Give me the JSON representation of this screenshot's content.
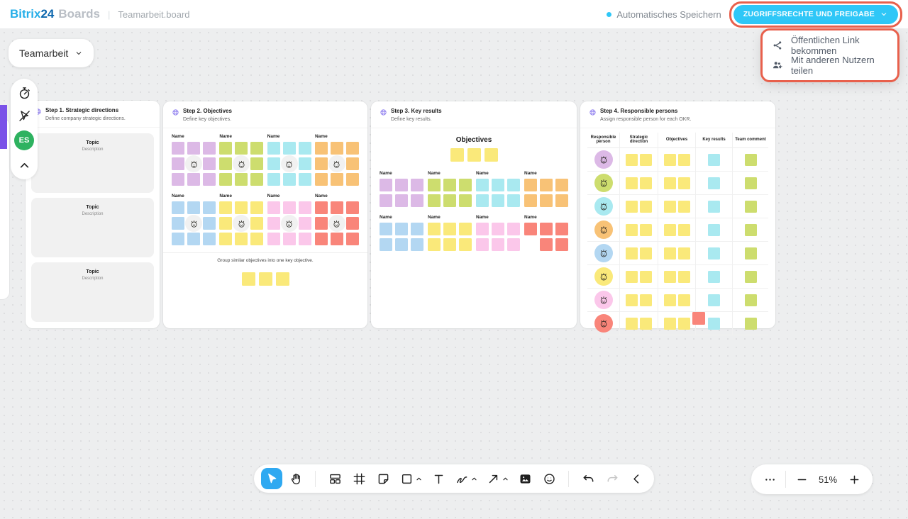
{
  "palette": {
    "accent": "#2FC7F7",
    "annotation": "#E8604C",
    "logo_light": "#25AEE8",
    "logo_dark": "#0B66AD",
    "avatar_green": "#2EB260",
    "frame_purple": "#7A52E8",
    "active_tool_blue": "#2FA9F1",
    "lavender": "#DCB9E6",
    "green": "#CDDD6E",
    "cyan": "#A9E9F0",
    "orange": "#F8C276",
    "blue": "#B3D7F2",
    "yellow": "#FAE97A",
    "pink": "#FBC7EA",
    "red": "#F9857A",
    "avatar_bg_gray": "#F1F1F1"
  },
  "header": {
    "logo_part1": "Bitrix",
    "logo_part2": "24",
    "logo_product": "Boards",
    "breadcrumb_separator": "|",
    "document_title": "Teamarbeit.board",
    "autosave_label": "Automatisches Speichern",
    "share_button_label": "ZUGRIFFSRECHTE UND FREIGABE"
  },
  "share_menu": {
    "items": [
      {
        "name": "get-public-link-item",
        "icon": "share-icon",
        "label": "Öffentlichen Link bekommen"
      },
      {
        "name": "share-with-users-item",
        "icon": "user-plus-icon",
        "label": "Mit anderen Nutzern teilen"
      }
    ]
  },
  "board_selector": {
    "label": "Teamarbeit"
  },
  "left_toolbar": {
    "items": [
      {
        "name": "timer-button",
        "icon": "timer-icon"
      },
      {
        "name": "hide-cursors-button",
        "icon": "cursor-off-icon"
      },
      {
        "name": "user-avatar",
        "type": "avatar",
        "initials": "ES"
      },
      {
        "name": "collapse-panel-button",
        "icon": "chevron-up-icon"
      }
    ]
  },
  "frames": {
    "step1": {
      "title": "Step 1. Strategic directions",
      "subtitle": "Define company strategic directions.",
      "cards": [
        {
          "title": "Topic",
          "description": "Description"
        },
        {
          "title": "Topic",
          "description": "Description"
        },
        {
          "title": "Topic",
          "description": "Description"
        }
      ]
    },
    "step2": {
      "title": "Step 2. Objectives",
      "subtitle": "Define key objectives.",
      "group_label": "Name",
      "group_colors": [
        "lavender",
        "green",
        "cyan",
        "orange",
        "blue",
        "yellow",
        "pink",
        "red"
      ],
      "hint": "Group similar objectives into one key objective.",
      "hint_stickies": {
        "count": 3,
        "color": "yellow"
      }
    },
    "step3": {
      "title": "Step 3. Key results",
      "subtitle": "Define key results.",
      "heading": "Objectives",
      "heading_stickies": {
        "count": 3,
        "color": "yellow"
      },
      "group_label": "Name",
      "groups": [
        {
          "color": "lavender",
          "cells": [
            1,
            1,
            1,
            1,
            1,
            1
          ]
        },
        {
          "color": "green",
          "cells": [
            1,
            1,
            1,
            1,
            1,
            1
          ]
        },
        {
          "color": "cyan",
          "cells": [
            1,
            1,
            1,
            1,
            1,
            1
          ]
        },
        {
          "color": "orange",
          "cells": [
            1,
            1,
            1,
            1,
            1,
            1
          ]
        },
        {
          "color": "blue",
          "cells": [
            1,
            1,
            1,
            1,
            1,
            1
          ]
        },
        {
          "color": "yellow",
          "cells": [
            1,
            1,
            1,
            1,
            1,
            1
          ]
        },
        {
          "color": "pink",
          "cells": [
            1,
            1,
            1,
            1,
            1,
            1
          ]
        },
        {
          "color": "red",
          "cells": [
            1,
            1,
            1,
            0,
            1,
            1
          ]
        }
      ]
    },
    "step4": {
      "title": "Step 4. Responsible persons",
      "subtitle": "Assign responsible person for each OKR.",
      "columns": [
        "Responsible person",
        "Strategic direction",
        "Objectives",
        "Key results",
        "Team comment"
      ],
      "rows": [
        {
          "avatar_color": "lavender"
        },
        {
          "avatar_color": "green"
        },
        {
          "avatar_color": "cyan"
        },
        {
          "avatar_color": "orange"
        },
        {
          "avatar_color": "blue"
        },
        {
          "avatar_color": "yellow"
        },
        {
          "avatar_color": "pink"
        },
        {
          "avatar_color": "red"
        }
      ],
      "row_stickies": {
        "strategic_direction": {
          "count": 2,
          "color": "yellow"
        },
        "objectives": {
          "count": 2,
          "color": "yellow"
        },
        "key_results": {
          "count": 1,
          "color": "cyan"
        },
        "team_comment": {
          "count": 1,
          "color": "green"
        }
      },
      "overlay_sticky": {
        "color": "red",
        "row": 8,
        "column": "key_results"
      }
    }
  },
  "bottom_toolbar": {
    "tools": [
      {
        "name": "select-tool",
        "icon": "cursor-icon",
        "active": true
      },
      {
        "name": "pan-tool",
        "icon": "hand-icon"
      },
      {
        "divider": true
      },
      {
        "name": "template-tool",
        "icon": "layout-icon"
      },
      {
        "name": "frame-tool",
        "icon": "frame-icon"
      },
      {
        "name": "sticker-tool",
        "icon": "note-icon"
      },
      {
        "name": "shape-tool",
        "icon": "shape-icon",
        "caret": true
      },
      {
        "name": "text-tool",
        "icon": "text-icon"
      },
      {
        "name": "pen-tool",
        "icon": "pen-icon",
        "caret": true
      },
      {
        "name": "arrow-tool",
        "icon": "arrow-icon",
        "caret": true
      },
      {
        "name": "image-tool",
        "icon": "image-icon"
      },
      {
        "name": "emoji-tool",
        "icon": "emoji-icon"
      },
      {
        "divider": true
      },
      {
        "name": "undo-button",
        "icon": "undo-icon"
      },
      {
        "name": "redo-button",
        "icon": "redo-icon",
        "disabled": true
      },
      {
        "name": "collapse-toolbar-button",
        "icon": "chevron-left-icon"
      }
    ]
  },
  "zoom_controls": {
    "zoom_level": "51%"
  }
}
